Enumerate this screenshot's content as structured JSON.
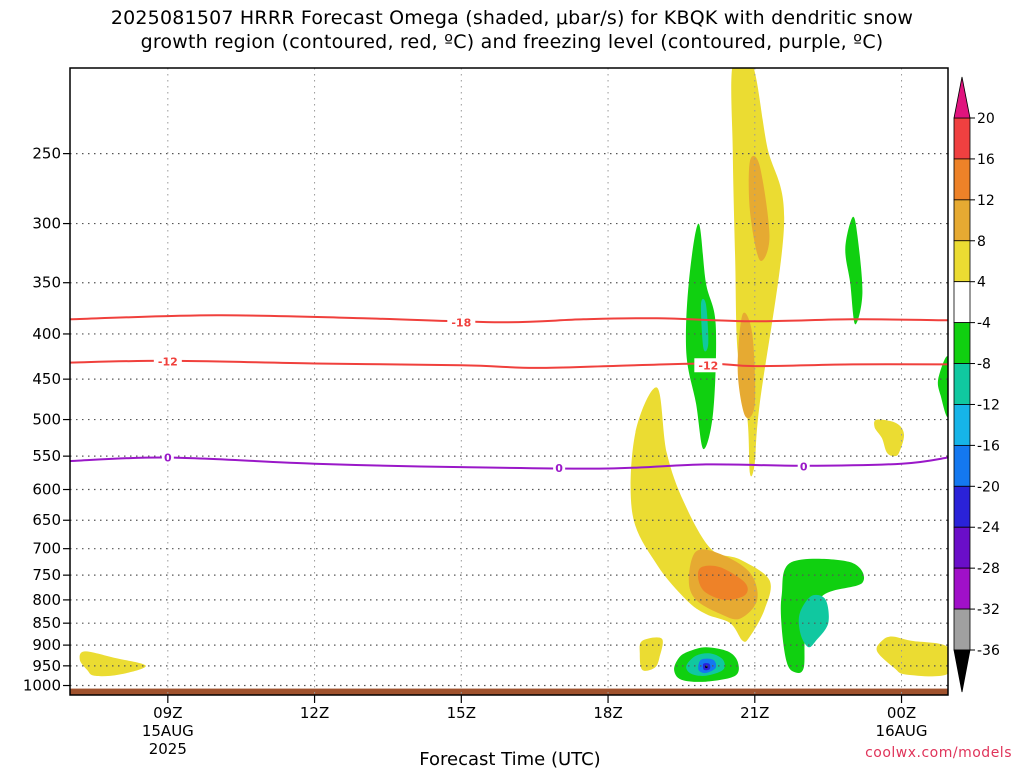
{
  "title": {
    "line1": "2025081507 HRRR Forecast Omega (shaded, μbar/s) for KBQK with dendritic snow",
    "line2": "growth region (contoured, red, ºC) and freezing level (contoured, purple, ºC)"
  },
  "credit": "coolwx.com/models",
  "colors": {
    "dendritic": "#f0403c",
    "freezing": "#9a18c8",
    "ground": "#a0522d",
    "grid": "#555555"
  },
  "chart_data": {
    "type": "heatmap",
    "title": "2025081507 HRRR Forecast Omega (shaded, μbar/s) for KBQK with dendritic snow growth region (contoured, red, ºC) and freezing level (contoured, purple, ºC)",
    "xlabel": "Forecast Time (UTC)",
    "ylabel": "",
    "x_ticks": [
      {
        "hour": 9,
        "label": "09Z",
        "date": "15AUG",
        "year": "2025"
      },
      {
        "hour": 12,
        "label": "12Z"
      },
      {
        "hour": 15,
        "label": "15Z"
      },
      {
        "hour": 18,
        "label": "18Z"
      },
      {
        "hour": 21,
        "label": "21Z"
      },
      {
        "hour": 24,
        "label": "00Z",
        "date": "16AUG"
      }
    ],
    "xlim_hours": [
      7.0,
      24.95
    ],
    "ylim_hPa": [
      1025,
      200
    ],
    "y_ticks": [
      250,
      300,
      350,
      400,
      450,
      500,
      550,
      600,
      650,
      700,
      750,
      800,
      850,
      900,
      950,
      1000
    ],
    "grid": true,
    "colorbar": {
      "levels": [
        -36,
        -32,
        -28,
        -24,
        -20,
        -16,
        -12,
        -8,
        -4,
        4,
        8,
        12,
        16,
        20
      ],
      "tick_labels": [
        "20",
        "16",
        "12",
        "8",
        "4",
        "-4",
        "-8",
        "-12",
        "-16",
        "-20",
        "-24",
        "-28",
        "-32",
        "-36"
      ],
      "colors": {
        "below_-36": "#000000",
        "-36_-32": "#a0a0a0",
        "-32_-28": "#a010c8",
        "-28_-24": "#6a0ec8",
        "-24_-20": "#2a22d8",
        "-20_-16": "#1478f0",
        "-16_-12": "#16b4e8",
        "-12_-8": "#10c8a0",
        "-8_-4": "#10d010",
        "-4_4": "#ffffff",
        "4_8": "#ebdc32",
        "8_12": "#e6aa32",
        "12_16": "#ee8228",
        "16_20": "#f04040",
        "above_20": "#e0147e"
      }
    },
    "contours": [
      {
        "name": "-18",
        "color": "#f0403c",
        "points": [
          [
            7.0,
            385
          ],
          [
            10.0,
            381
          ],
          [
            13.0,
            384
          ],
          [
            15.8,
            388
          ],
          [
            17.5,
            385
          ],
          [
            19.0,
            384
          ],
          [
            21.0,
            387
          ],
          [
            23.0,
            385
          ],
          [
            24.95,
            386
          ]
        ]
      },
      {
        "name": "-12",
        "color": "#f0403c",
        "points": [
          [
            7.0,
            431
          ],
          [
            9.0,
            429
          ],
          [
            12.0,
            432
          ],
          [
            15.0,
            434
          ],
          [
            16.5,
            437
          ],
          [
            18.0,
            435
          ],
          [
            20.0,
            432
          ],
          [
            21.0,
            435
          ],
          [
            23.0,
            433
          ],
          [
            24.95,
            433
          ]
        ]
      },
      {
        "name": "0",
        "color": "#9a18c8",
        "points": [
          [
            7.0,
            557
          ],
          [
            9.0,
            552
          ],
          [
            12.0,
            561
          ],
          [
            15.0,
            566
          ],
          [
            18.0,
            568
          ],
          [
            20.0,
            562
          ],
          [
            22.0,
            564
          ],
          [
            24.0,
            561
          ],
          [
            24.95,
            552
          ]
        ]
      }
    ],
    "contour_labels": [
      {
        "text": "-18",
        "x": 15.0,
        "p": 388,
        "color": "#f0403c"
      },
      {
        "text": "-12",
        "x": 9.0,
        "p": 430,
        "color": "#f0403c"
      },
      {
        "text": "-12",
        "x": 20.05,
        "p": 434,
        "color": "#f0403c"
      },
      {
        "text": "0",
        "x": 9.0,
        "p": 552,
        "color": "#9a18c8"
      },
      {
        "text": "0",
        "x": 17.0,
        "p": 567,
        "color": "#9a18c8"
      },
      {
        "text": "0",
        "x": 22.0,
        "p": 565,
        "color": "#9a18c8"
      }
    ],
    "regions": [
      {
        "value": 4,
        "color": "#ebdc32",
        "points": [
          [
            20.55,
            198
          ],
          [
            20.95,
            198
          ],
          [
            21.25,
            245
          ],
          [
            21.6,
            300
          ],
          [
            21.1,
            480
          ],
          [
            21.0,
            560
          ],
          [
            20.9,
            575
          ],
          [
            20.85,
            500
          ],
          [
            20.65,
            420
          ],
          [
            20.6,
            330
          ],
          [
            20.55,
            250
          ]
        ]
      },
      {
        "value": 8,
        "color": "#e6aa32",
        "points": [
          [
            20.9,
            255
          ],
          [
            21.1,
            258
          ],
          [
            21.3,
            310
          ],
          [
            21.1,
            330
          ],
          [
            20.9,
            290
          ]
        ]
      },
      {
        "value": 8,
        "color": "#e6aa32",
        "points": [
          [
            20.75,
            380
          ],
          [
            20.95,
            400
          ],
          [
            21.0,
            480
          ],
          [
            20.8,
            495
          ],
          [
            20.65,
            440
          ]
        ]
      },
      {
        "value": 4,
        "color": "#ebdc32",
        "points": [
          [
            19.0,
            460
          ],
          [
            19.2,
            545
          ],
          [
            19.55,
            620
          ],
          [
            20.1,
            700
          ],
          [
            20.7,
            720
          ],
          [
            21.3,
            760
          ],
          [
            21.2,
            820
          ],
          [
            20.9,
            880
          ],
          [
            20.75,
            890
          ],
          [
            20.5,
            850
          ],
          [
            20.0,
            830
          ],
          [
            19.6,
            800
          ],
          [
            19.0,
            730
          ],
          [
            18.5,
            640
          ],
          [
            18.55,
            520
          ]
        ]
      },
      {
        "value": 8,
        "color": "#e6aa32",
        "points": [
          [
            19.8,
            705
          ],
          [
            20.3,
            710
          ],
          [
            20.9,
            745
          ],
          [
            21.05,
            800
          ],
          [
            20.7,
            840
          ],
          [
            20.3,
            830
          ],
          [
            19.8,
            800
          ],
          [
            19.65,
            760
          ]
        ]
      },
      {
        "value": 12,
        "color": "#ee8228",
        "points": [
          [
            19.9,
            735
          ],
          [
            20.3,
            735
          ],
          [
            20.8,
            765
          ],
          [
            20.8,
            790
          ],
          [
            20.4,
            800
          ],
          [
            20.0,
            785
          ],
          [
            19.85,
            760
          ]
        ]
      },
      {
        "value": 4,
        "color": "#ebdc32",
        "points": [
          [
            23.5,
            500
          ],
          [
            23.9,
            505
          ],
          [
            24.05,
            520
          ],
          [
            23.95,
            545
          ],
          [
            23.85,
            550
          ],
          [
            23.7,
            545
          ],
          [
            23.6,
            525
          ],
          [
            23.45,
            510
          ]
        ]
      },
      {
        "value": 4,
        "color": "#ebdc32",
        "points": [
          [
            7.3,
            915
          ],
          [
            7.9,
            930
          ],
          [
            8.55,
            950
          ],
          [
            8.0,
            972
          ],
          [
            7.5,
            975
          ],
          [
            7.35,
            960
          ],
          [
            7.2,
            935
          ]
        ]
      },
      {
        "value": 4,
        "color": "#ebdc32",
        "points": [
          [
            23.8,
            880
          ],
          [
            24.2,
            890
          ],
          [
            24.95,
            905
          ],
          [
            24.95,
            970
          ],
          [
            24.1,
            972
          ],
          [
            23.85,
            955
          ],
          [
            23.5,
            915
          ],
          [
            23.6,
            890
          ]
        ]
      },
      {
        "value": 4,
        "color": "#ebdc32",
        "points": [
          [
            18.7,
            890
          ],
          [
            19.1,
            885
          ],
          [
            19.05,
            930
          ],
          [
            18.95,
            955
          ],
          [
            18.7,
            960
          ],
          [
            18.65,
            920
          ]
        ]
      },
      {
        "value": -4,
        "color": "#10d010",
        "points": [
          [
            19.85,
            300
          ],
          [
            20.0,
            350
          ],
          [
            20.2,
            390
          ],
          [
            20.15,
            490
          ],
          [
            19.95,
            540
          ],
          [
            19.8,
            480
          ],
          [
            19.6,
            420
          ],
          [
            19.65,
            350
          ]
        ]
      },
      {
        "value": -8,
        "color": "#10c8a0",
        "points": [
          [
            19.9,
            370
          ],
          [
            20.0,
            370
          ],
          [
            20.05,
            410
          ],
          [
            19.95,
            415
          ]
        ]
      },
      {
        "value": -4,
        "color": "#10d010",
        "points": [
          [
            23.0,
            295
          ],
          [
            23.1,
            310
          ],
          [
            23.2,
            360
          ],
          [
            23.05,
            390
          ],
          [
            22.95,
            350
          ],
          [
            22.85,
            320
          ]
        ]
      },
      {
        "value": -4,
        "color": "#10d010",
        "points": [
          [
            24.95,
            425
          ],
          [
            24.95,
            495
          ],
          [
            24.8,
            470
          ],
          [
            24.75,
            450
          ]
        ]
      },
      {
        "value": -4,
        "color": "#10d010",
        "points": [
          [
            21.75,
            725
          ],
          [
            22.95,
            725
          ],
          [
            23.2,
            765
          ],
          [
            22.4,
            790
          ],
          [
            22.05,
            860
          ],
          [
            22.0,
            955
          ],
          [
            21.8,
            965
          ],
          [
            21.65,
            940
          ],
          [
            21.55,
            860
          ],
          [
            21.55,
            790
          ]
        ]
      },
      {
        "value": -8,
        "color": "#10c8a0",
        "points": [
          [
            22.2,
            790
          ],
          [
            22.45,
            800
          ],
          [
            22.5,
            850
          ],
          [
            22.25,
            890
          ],
          [
            22.1,
            905
          ],
          [
            21.95,
            880
          ],
          [
            21.9,
            840
          ],
          [
            22.0,
            810
          ]
        ]
      },
      {
        "value": -4,
        "color": "#10d010",
        "points": [
          [
            19.65,
            915
          ],
          [
            20.0,
            905
          ],
          [
            20.45,
            915
          ],
          [
            20.65,
            940
          ],
          [
            20.6,
            975
          ],
          [
            20.0,
            990
          ],
          [
            19.5,
            985
          ],
          [
            19.35,
            960
          ],
          [
            19.45,
            930
          ]
        ]
      },
      {
        "value": -8,
        "color": "#10c8a0",
        "points": [
          [
            19.8,
            925
          ],
          [
            20.1,
            920
          ],
          [
            20.35,
            935
          ],
          [
            20.35,
            960
          ],
          [
            20.0,
            975
          ],
          [
            19.7,
            970
          ],
          [
            19.6,
            950
          ]
        ]
      },
      {
        "value": -16,
        "color": "#1478f0",
        "points": [
          [
            19.9,
            935
          ],
          [
            20.15,
            935
          ],
          [
            20.2,
            955
          ],
          [
            20.0,
            968
          ],
          [
            19.85,
            960
          ]
        ]
      },
      {
        "value": -20,
        "color": "#2a22d8",
        "points": [
          [
            19.95,
            945
          ],
          [
            20.07,
            945
          ],
          [
            20.08,
            958
          ],
          [
            19.96,
            960
          ]
        ]
      },
      {
        "value": -36,
        "color": "#000000",
        "points": [
          [
            19.99,
            950
          ],
          [
            20.03,
            950
          ],
          [
            20.03,
            955
          ],
          [
            19.99,
            955
          ]
        ]
      }
    ],
    "ground_level_hPa": 1008
  }
}
